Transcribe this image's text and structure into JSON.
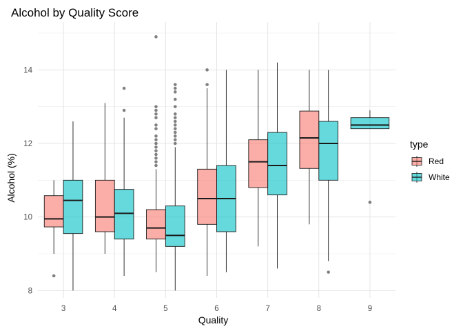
{
  "chart_data": {
    "type": "boxplot",
    "title": "Alcohol by Quality Score",
    "xlabel": "Quality",
    "ylabel": "Alcohol (%)",
    "categories": [
      "3",
      "4",
      "5",
      "6",
      "7",
      "8",
      "9"
    ],
    "ylim": [
      7.8,
      15.3
    ],
    "yticks": [
      8,
      10,
      12,
      14
    ],
    "grid": true,
    "legend": {
      "title": "type",
      "position": "right"
    },
    "series": [
      {
        "name": "Red",
        "color": "#F8766D",
        "boxes": [
          {
            "category": "3",
            "min": 9.0,
            "q1": 9.73,
            "median": 9.95,
            "q3": 10.58,
            "max": 11.0,
            "outliers": [
              8.4
            ]
          },
          {
            "category": "4",
            "min": 9.0,
            "q1": 9.6,
            "median": 10.0,
            "q3": 11.0,
            "max": 13.1,
            "outliers": []
          },
          {
            "category": "5",
            "min": 8.5,
            "q1": 9.4,
            "median": 9.7,
            "q3": 10.2,
            "max": 11.3,
            "outliers": [
              11.4,
              11.5,
              11.6,
              11.7,
              11.8,
              11.9,
              12.0,
              12.1,
              12.2,
              12.4,
              12.5,
              12.7,
              12.8,
              12.9,
              13.0,
              14.9
            ]
          },
          {
            "category": "6",
            "min": 8.4,
            "q1": 9.8,
            "median": 10.5,
            "q3": 11.3,
            "max": 13.5,
            "outliers": [
              13.6,
              14.0
            ]
          },
          {
            "category": "7",
            "min": 9.2,
            "q1": 10.8,
            "median": 11.5,
            "q3": 12.1,
            "max": 14.0,
            "outliers": []
          },
          {
            "category": "8",
            "min": 9.8,
            "q1": 11.32,
            "median": 12.15,
            "q3": 12.88,
            "max": 14.0,
            "outliers": []
          }
        ]
      },
      {
        "name": "White",
        "color": "#00BFC4",
        "boxes": [
          {
            "category": "3",
            "min": 8.0,
            "q1": 9.55,
            "median": 10.45,
            "q3": 11.0,
            "max": 12.6,
            "outliers": []
          },
          {
            "category": "4",
            "min": 8.4,
            "q1": 9.4,
            "median": 10.1,
            "q3": 10.75,
            "max": 12.7,
            "outliers": [
              12.9,
              13.5
            ]
          },
          {
            "category": "5",
            "min": 8.0,
            "q1": 9.2,
            "median": 9.5,
            "q3": 10.3,
            "max": 11.9,
            "outliers": [
              12.0,
              12.1,
              12.2,
              12.3,
              12.4,
              12.5,
              12.6,
              12.7,
              12.8,
              13.0,
              13.2,
              13.4,
              13.5,
              13.6
            ]
          },
          {
            "category": "6",
            "min": 8.5,
            "q1": 9.6,
            "median": 10.5,
            "q3": 11.4,
            "max": 14.0,
            "outliers": []
          },
          {
            "category": "7",
            "min": 8.6,
            "q1": 10.6,
            "median": 11.4,
            "q3": 12.3,
            "max": 14.2,
            "outliers": []
          },
          {
            "category": "8",
            "min": 8.8,
            "q1": 11.0,
            "median": 12.0,
            "q3": 12.6,
            "max": 14.0,
            "outliers": [
              8.5
            ]
          },
          {
            "category": "9",
            "min": 12.4,
            "q1": 12.4,
            "median": 12.5,
            "q3": 12.7,
            "max": 12.9,
            "outliers": [
              10.4
            ]
          }
        ]
      }
    ]
  }
}
